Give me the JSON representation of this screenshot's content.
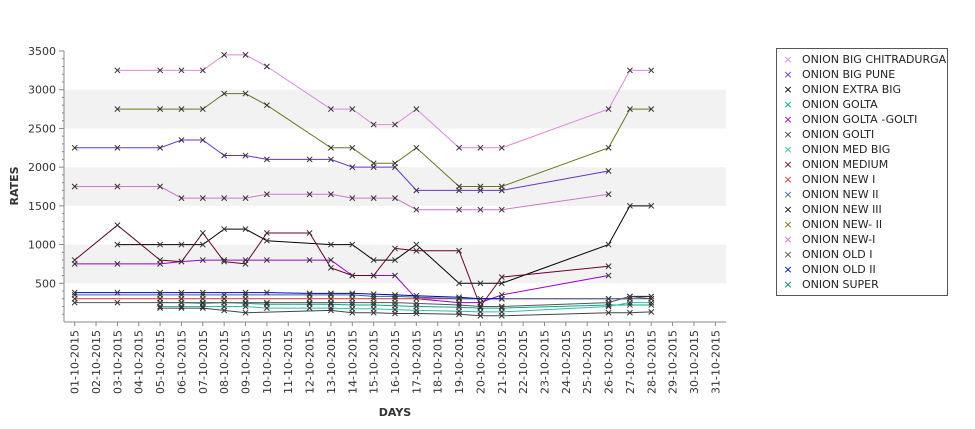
{
  "chart_data": {
    "type": "line",
    "xlabel": "DAYS",
    "ylabel": "RATES",
    "ylim": [
      0,
      3500
    ],
    "yticks": [
      500,
      1000,
      1500,
      2000,
      2500,
      3000,
      3500
    ],
    "grid": "alternating horizontal bands",
    "legend_position": "right",
    "marker": "x",
    "x": [
      "01-10-2015",
      "02-10-2015",
      "03-10-2015",
      "04-10-2015",
      "05-10-2015",
      "06-10-2015",
      "07-10-2015",
      "08-10-2015",
      "09-10-2015",
      "10-10-2015",
      "11-10-2015",
      "12-10-2015",
      "13-10-2015",
      "14-10-2015",
      "15-10-2015",
      "16-10-2015",
      "17-10-2015",
      "18-10-2015",
      "19-10-2015",
      "20-10-2015",
      "21-10-2015",
      "22-10-2015",
      "23-10-2015",
      "24-10-2015",
      "25-10-2015",
      "26-10-2015",
      "27-10-2015",
      "28-10-2015",
      "29-10-2015",
      "30-10-2015",
      "31-10-2015"
    ],
    "series": [
      {
        "name": "ONION BIG CHITRADURGA",
        "color": "#dd88dd",
        "values": [
          null,
          null,
          3250,
          null,
          3250,
          3250,
          3250,
          3450,
          3450,
          3300,
          null,
          null,
          2750,
          2750,
          2550,
          2550,
          2750,
          null,
          2250,
          2250,
          2250,
          null,
          null,
          null,
          null,
          2750,
          3250,
          3250,
          null,
          null,
          null
        ]
      },
      {
        "name": "ONION BIG PUNE",
        "color": "#6633cc",
        "values": [
          2250,
          null,
          2250,
          null,
          2250,
          2350,
          2350,
          2150,
          2150,
          2100,
          null,
          2100,
          2100,
          2000,
          2000,
          2000,
          1700,
          null,
          1700,
          1700,
          1700,
          null,
          null,
          null,
          null,
          1950,
          null,
          null,
          null,
          null,
          null
        ]
      },
      {
        "name": "ONION EXTRA BIG",
        "color": "#000000",
        "values": [
          null,
          null,
          1000,
          null,
          1000,
          1000,
          1000,
          1200,
          1200,
          1050,
          null,
          null,
          1000,
          1000,
          800,
          800,
          1000,
          null,
          500,
          500,
          500,
          null,
          null,
          null,
          null,
          1000,
          1500,
          1500,
          null,
          null,
          null
        ]
      },
      {
        "name": "ONION GOLTA",
        "color": "#00aa88",
        "values": [
          null,
          null,
          null,
          null,
          250,
          250,
          240,
          250,
          240,
          230,
          null,
          230,
          230,
          220,
          220,
          210,
          200,
          null,
          190,
          180,
          180,
          null,
          null,
          null,
          null,
          220,
          220,
          220,
          null,
          null,
          null
        ]
      },
      {
        "name": "ONION GOLTA -GOLTI",
        "color": "#9900cc",
        "values": [
          750,
          null,
          750,
          null,
          750,
          780,
          800,
          800,
          800,
          800,
          null,
          800,
          800,
          600,
          600,
          600,
          300,
          null,
          250,
          250,
          350,
          null,
          null,
          null,
          null,
          600,
          null,
          null,
          null,
          null,
          null
        ]
      },
      {
        "name": "ONION GOLTI",
        "color": "#444444",
        "values": [
          null,
          null,
          null,
          null,
          180,
          180,
          180,
          150,
          120,
          null,
          null,
          null,
          150,
          120,
          120,
          110,
          110,
          null,
          100,
          80,
          80,
          null,
          null,
          null,
          null,
          120,
          120,
          130,
          null,
          null,
          null
        ]
      },
      {
        "name": "ONION MED BIG",
        "color": "#33bbaa",
        "values": [
          null,
          null,
          null,
          null,
          200,
          200,
          200,
          200,
          200,
          180,
          null,
          180,
          180,
          170,
          170,
          160,
          150,
          null,
          140,
          130,
          130,
          null,
          null,
          null,
          null,
          200,
          250,
          250,
          null,
          null,
          null
        ]
      },
      {
        "name": "ONION MEDIUM",
        "color": "#660033",
        "values": [
          800,
          null,
          1250,
          null,
          800,
          780,
          1150,
          780,
          750,
          1150,
          null,
          1150,
          700,
          600,
          600,
          950,
          920,
          null,
          920,
          200,
          580,
          null,
          null,
          null,
          null,
          720,
          null,
          null,
          null,
          null,
          null
        ]
      },
      {
        "name": "ONION NEW I",
        "color": "#cc3333",
        "values": [
          300,
          null,
          null,
          null,
          300,
          300,
          300,
          300,
          300,
          null,
          null,
          300,
          300,
          300,
          300,
          300,
          null,
          null,
          300,
          null,
          300,
          null,
          null,
          null,
          null,
          300,
          300,
          null,
          null,
          null,
          null
        ]
      },
      {
        "name": "ONION NEW II",
        "color": "#336699",
        "values": [
          350,
          null,
          null,
          null,
          350,
          350,
          350,
          350,
          350,
          null,
          null,
          350,
          350,
          350,
          330,
          330,
          null,
          null,
          300,
          null,
          300,
          null,
          null,
          null,
          null,
          300,
          300,
          300,
          null,
          null,
          null
        ]
      },
      {
        "name": "ONION NEW III",
        "color": "#111111",
        "values": [
          null,
          null,
          null,
          null,
          null,
          null,
          null,
          null,
          null,
          null,
          null,
          null,
          null,
          null,
          null,
          null,
          null,
          null,
          null,
          null,
          null,
          null,
          null,
          null,
          null,
          null,
          330,
          330,
          null,
          null,
          null
        ]
      },
      {
        "name": "ONION NEW- II",
        "color": "#667722",
        "values": [
          null,
          null,
          2750,
          null,
          2750,
          2750,
          2750,
          2950,
          2950,
          2800,
          null,
          null,
          2250,
          2250,
          2050,
          2050,
          2250,
          null,
          1750,
          1750,
          1750,
          null,
          null,
          null,
          null,
          2250,
          2750,
          2750,
          null,
          null,
          null
        ]
      },
      {
        "name": "ONION NEW-I",
        "color": "#cc77cc",
        "values": [
          1750,
          null,
          1750,
          null,
          1750,
          1600,
          1600,
          1600,
          1600,
          1650,
          null,
          1650,
          1650,
          1600,
          1600,
          1600,
          1450,
          null,
          1450,
          1450,
          1450,
          null,
          null,
          null,
          null,
          1650,
          null,
          null,
          null,
          null,
          null
        ]
      },
      {
        "name": "ONION OLD I",
        "color": "#555555",
        "values": [
          250,
          null,
          250,
          null,
          250,
          250,
          250,
          250,
          250,
          250,
          null,
          250,
          250,
          250,
          250,
          250,
          240,
          null,
          220,
          200,
          200,
          null,
          null,
          null,
          null,
          250,
          330,
          300,
          null,
          null,
          null
        ]
      },
      {
        "name": "ONION OLD II",
        "color": "#0000cc",
        "values": [
          380,
          null,
          380,
          null,
          380,
          380,
          380,
          null,
          380,
          380,
          null,
          370,
          370,
          370,
          360,
          350,
          340,
          null,
          320,
          300,
          300,
          null,
          null,
          null,
          null,
          null,
          null,
          null,
          null,
          null,
          null
        ]
      },
      {
        "name": "ONION SUPER",
        "color": "#008855",
        "values": [
          null,
          null,
          null,
          null,
          null,
          null,
          null,
          null,
          null,
          null,
          null,
          null,
          null,
          null,
          null,
          null,
          null,
          null,
          null,
          null,
          null,
          null,
          null,
          null,
          null,
          null,
          null,
          null,
          null,
          null,
          null
        ]
      }
    ]
  }
}
